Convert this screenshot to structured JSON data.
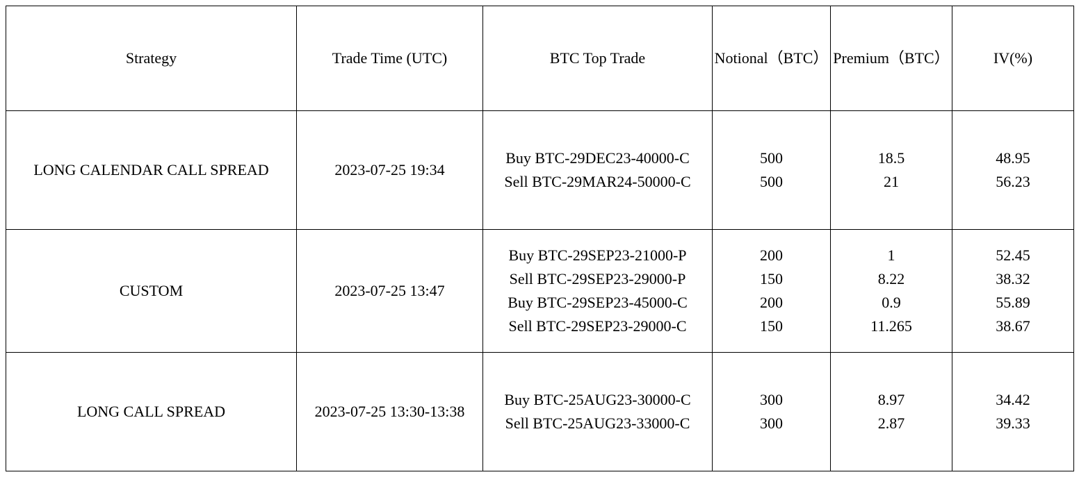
{
  "table": {
    "columns": [
      "Strategy",
      "Trade Time (UTC)",
      "BTC Top Trade",
      "Notional（BTC）",
      "Premium（BTC）",
      "IV(%)"
    ],
    "rows": [
      {
        "strategy": "LONG CALENDAR CALL SPREAD",
        "time": "2023-07-25 19:34",
        "legs": [
          {
            "trade": "Buy BTC-29DEC23-40000-C",
            "notional": "500",
            "premium": "18.5",
            "iv": "48.95"
          },
          {
            "trade": "Sell BTC-29MAR24-50000-C",
            "notional": "500",
            "premium": "21",
            "iv": "56.23"
          }
        ]
      },
      {
        "strategy": "CUSTOM",
        "time": "2023-07-25 13:47",
        "legs": [
          {
            "trade": "Buy BTC-29SEP23-21000-P",
            "notional": "200",
            "premium": "1",
            "iv": "52.45"
          },
          {
            "trade": "Sell BTC-29SEP23-29000-P",
            "notional": "150",
            "premium": "8.22",
            "iv": "38.32"
          },
          {
            "trade": "Buy BTC-29SEP23-45000-C",
            "notional": "200",
            "premium": "0.9",
            "iv": "55.89"
          },
          {
            "trade": "Sell BTC-29SEP23-29000-C",
            "notional": "150",
            "premium": "11.265",
            "iv": "38.67"
          }
        ]
      },
      {
        "strategy": "LONG CALL SPREAD",
        "time": "2023-07-25 13:30-13:38",
        "legs": [
          {
            "trade": "Buy BTC-25AUG23-30000-C",
            "notional": "300",
            "premium": "8.97",
            "iv": "34.42"
          },
          {
            "trade": "Sell BTC-25AUG23-33000-C",
            "notional": "300",
            "premium": "2.87",
            "iv": "39.33"
          }
        ]
      }
    ]
  },
  "style": {
    "font_family": "Times New Roman",
    "font_size_pt": 16,
    "border_color": "#000000",
    "background_color": "#ffffff",
    "text_color": "#000000"
  }
}
